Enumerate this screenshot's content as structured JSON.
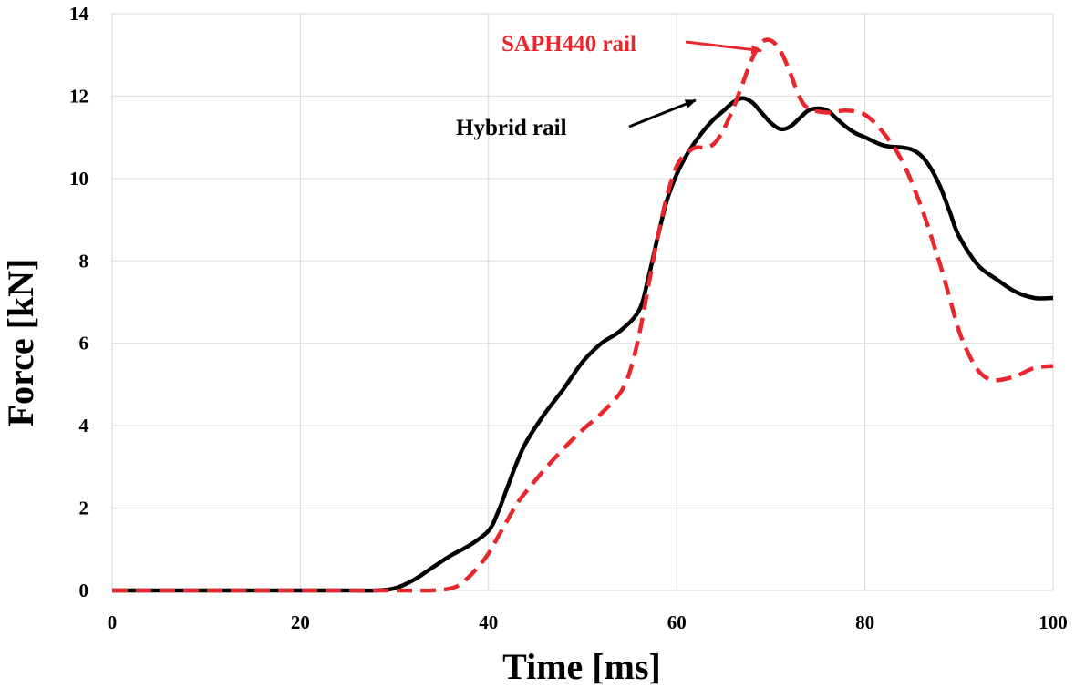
{
  "chart_data": {
    "type": "line",
    "title": "",
    "xlabel": "Time [ms]",
    "ylabel": "Force [kN]",
    "xlim": [
      0,
      100
    ],
    "ylim": [
      0,
      14
    ],
    "xticks": [
      0,
      20,
      40,
      60,
      80,
      100
    ],
    "yticks": [
      0,
      2,
      4,
      6,
      8,
      10,
      12,
      14
    ],
    "grid": true,
    "legend": "none",
    "series": [
      {
        "name": "Hybrid rail",
        "color": "#000000",
        "style": "solid",
        "x": [
          0,
          10,
          20,
          25,
          28,
          30,
          32,
          34,
          36,
          38,
          40,
          41,
          42,
          43,
          44,
          46,
          48,
          50,
          52,
          54,
          56,
          57,
          58,
          59,
          60,
          61,
          62,
          63,
          64,
          65,
          66,
          67,
          68,
          69,
          70,
          71,
          72,
          73,
          74,
          75,
          76,
          77,
          78,
          79,
          80,
          82,
          84,
          85,
          86,
          87,
          88,
          89,
          90,
          92,
          94,
          96,
          98,
          100
        ],
        "y": [
          0,
          0,
          0,
          0,
          0,
          0.05,
          0.25,
          0.55,
          0.85,
          1.1,
          1.45,
          1.9,
          2.5,
          3.1,
          3.6,
          4.3,
          4.9,
          5.55,
          6.0,
          6.3,
          6.8,
          7.6,
          8.6,
          9.5,
          10.1,
          10.55,
          10.9,
          11.2,
          11.45,
          11.65,
          11.85,
          11.95,
          11.85,
          11.6,
          11.35,
          11.2,
          11.25,
          11.45,
          11.65,
          11.7,
          11.65,
          11.45,
          11.25,
          11.1,
          11.0,
          10.8,
          10.75,
          10.7,
          10.55,
          10.25,
          9.8,
          9.2,
          8.6,
          7.9,
          7.55,
          7.25,
          7.1,
          7.1
        ]
      },
      {
        "name": "SAPH440 rail",
        "color": "#e8262b",
        "style": "dashed",
        "x": [
          0,
          10,
          20,
          25,
          30,
          34,
          36,
          37,
          38,
          39,
          40,
          41,
          42,
          43,
          44,
          46,
          48,
          50,
          52,
          54,
          55,
          56,
          57,
          58,
          59,
          60,
          61,
          62,
          63,
          64,
          65,
          66,
          67,
          68,
          69,
          70,
          71,
          72,
          73,
          74,
          76,
          78,
          80,
          82,
          84,
          86,
          88,
          89,
          90,
          91,
          92,
          93,
          94,
          96,
          98,
          100
        ],
        "y": [
          0,
          0,
          0,
          0,
          0,
          0,
          0.05,
          0.15,
          0.35,
          0.6,
          0.9,
          1.3,
          1.7,
          2.1,
          2.4,
          2.95,
          3.45,
          3.9,
          4.3,
          4.8,
          5.3,
          6.2,
          7.4,
          8.6,
          9.6,
          10.3,
          10.6,
          10.75,
          10.75,
          10.85,
          11.2,
          11.7,
          12.3,
          12.9,
          13.3,
          13.35,
          13.1,
          12.6,
          12.0,
          11.7,
          11.6,
          11.65,
          11.55,
          11.1,
          10.4,
          9.3,
          7.9,
          7.1,
          6.3,
          5.75,
          5.35,
          5.15,
          5.1,
          5.2,
          5.4,
          5.45
        ]
      }
    ],
    "annotations": [
      {
        "text": "Hybrid rail",
        "color": "#000000",
        "arrow_to": [
          62,
          11.9
        ]
      },
      {
        "text": "SAPH440 rail",
        "color": "#e8262b",
        "arrow_to": [
          69,
          13.1
        ]
      }
    ]
  }
}
